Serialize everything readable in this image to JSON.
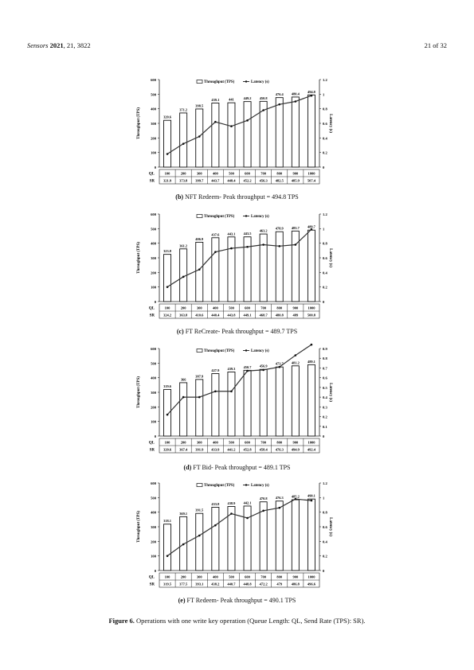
{
  "header": {
    "journal": "Sensors",
    "year": "2021",
    "volume": ", 21, 3822",
    "page": "21 of 32"
  },
  "legend": {
    "bar": "Throughput (TPS)",
    "line": "Latency (s)"
  },
  "row_labels": {
    "ql": "QL",
    "sr": "SR"
  },
  "axis": {
    "left": "Throughput (TPS)",
    "right": "Latency (s)"
  },
  "figure_caption": {
    "label": "Figure 6.",
    "text": " Operations with one write key operation (Queue Length: QL, Send Rate (TPS): SR)."
  },
  "chart_data": [
    {
      "type": "bar",
      "caption_letter": "(b)",
      "caption_text": " NFT Redeem- Peak throughput = 494.8 TPS",
      "categories": [
        "100",
        "200",
        "300",
        "400",
        "500",
        "600",
        "700",
        "800",
        "900",
        "1000"
      ],
      "sr": [
        "321.9",
        "373.8",
        "399.7",
        "443.7",
        "448.4",
        "452.2",
        "456.3",
        "482.5",
        "485.9",
        "507.4"
      ],
      "series": [
        {
          "name": "Throughput (TPS)",
          "values": [
            320.6,
            371.2,
            398.5,
            439.1,
            441,
            449.2,
            450.8,
            476.4,
            480.4,
            494.8
          ]
        },
        {
          "name": "Latency (s)",
          "values": [
            0.18,
            0.32,
            0.42,
            0.62,
            0.56,
            0.64,
            0.78,
            0.86,
            0.9,
            0.98
          ]
        }
      ],
      "ylim": [
        0,
        600
      ],
      "yticks": [
        0,
        100,
        200,
        300,
        400,
        500,
        600
      ],
      "y2lim": [
        0,
        1.2
      ],
      "y2ticks": [
        "0",
        "0.2",
        "0.4",
        "0.6",
        "0.8",
        "1",
        "1.2"
      ]
    },
    {
      "type": "bar",
      "caption_letter": "(c)",
      "caption_text": " FT ReCreate- Peak throughput = 489.7 TPS",
      "categories": [
        "100",
        "200",
        "300",
        "400",
        "500",
        "600",
        "700",
        "800",
        "900",
        "1000"
      ],
      "sr": [
        "324.2",
        "363.8",
        "410.6",
        "440.4",
        "443.8",
        "449.1",
        "468.7",
        "480.8",
        "489",
        "500.8"
      ],
      "series": [
        {
          "name": "Throughput (TPS)",
          "values": [
            323.8,
            361.2,
            406.9,
            437.6,
            443.1,
            443.5,
            463.2,
            478.9,
            483.7,
            489.7
          ]
        },
        {
          "name": "Latency (s)",
          "values": [
            0.2,
            0.34,
            0.44,
            0.68,
            0.73,
            0.75,
            0.78,
            0.76,
            0.78,
            0.99
          ]
        }
      ],
      "ylim": [
        0,
        600
      ],
      "yticks": [
        0,
        100,
        200,
        300,
        400,
        500,
        600
      ],
      "y2lim": [
        0,
        1.2
      ],
      "y2ticks": [
        "0",
        "0.2",
        "0.4",
        "0.6",
        "0.8",
        "1",
        "1.2"
      ]
    },
    {
      "type": "bar",
      "caption_letter": "(d)",
      "caption_text": " FT Bid- Peak throughput = 489.1 TPS",
      "categories": [
        "100",
        "200",
        "300",
        "400",
        "500",
        "600",
        "700",
        "800",
        "900",
        "1000"
      ],
      "sr": [
        "320.6",
        "367.4",
        "391.9",
        "433.9",
        "441.2",
        "452.8",
        "458.4",
        "476.3",
        "494.9",
        "492.4"
      ],
      "series": [
        {
          "name": "Throughput (TPS)",
          "values": [
            319.6,
            366,
            387.9,
            427.9,
            439.3,
            450.7,
            456.9,
            473.7,
            481.2,
            489.1
          ]
        },
        {
          "name": "Latency (s)",
          "values": [
            0.22,
            0.4,
            0.4,
            0.46,
            0.46,
            0.67,
            0.68,
            0.71,
            0.83,
            0.94
          ]
        }
      ],
      "ylim": [
        0,
        600
      ],
      "yticks": [
        0,
        100,
        200,
        300,
        400,
        500,
        600
      ],
      "y2lim": [
        0,
        0.9
      ],
      "y2ticks": [
        "0",
        "0.1",
        "0.2",
        "0.3",
        "0.4",
        "0.5",
        "0.6",
        "0.7",
        "0.8",
        "0.9"
      ]
    },
    {
      "type": "bar",
      "caption_letter": "(e)",
      "caption_text": " FT Redeem- Peak throughput = 490.1 TPS",
      "categories": [
        "100",
        "200",
        "300",
        "400",
        "500",
        "600",
        "700",
        "800",
        "900",
        "1000"
      ],
      "sr": [
        "319.5",
        "377.5",
        "393.1",
        "438.2",
        "440.7",
        "448.8",
        "472.2",
        "479",
        "486.8",
        "496.6"
      ],
      "series": [
        {
          "name": "Throughput (TPS)",
          "values": [
            318.1,
            369.1,
            391.5,
            433.8,
            438.9,
            442.1,
            470.8,
            476.3,
            485.2,
            490.1
          ]
        },
        {
          "name": "Latency (s)",
          "values": [
            0.2,
            0.36,
            0.48,
            0.62,
            0.78,
            0.72,
            0.82,
            0.86,
            0.98,
            0.96
          ]
        }
      ],
      "ylim": [
        0,
        600
      ],
      "yticks": [
        0,
        100,
        200,
        300,
        400,
        500,
        600
      ],
      "y2lim": [
        0,
        1.2
      ],
      "y2ticks": [
        "0",
        "0.2",
        "0.4",
        "0.6",
        "0.8",
        "1",
        "1.2"
      ]
    }
  ]
}
